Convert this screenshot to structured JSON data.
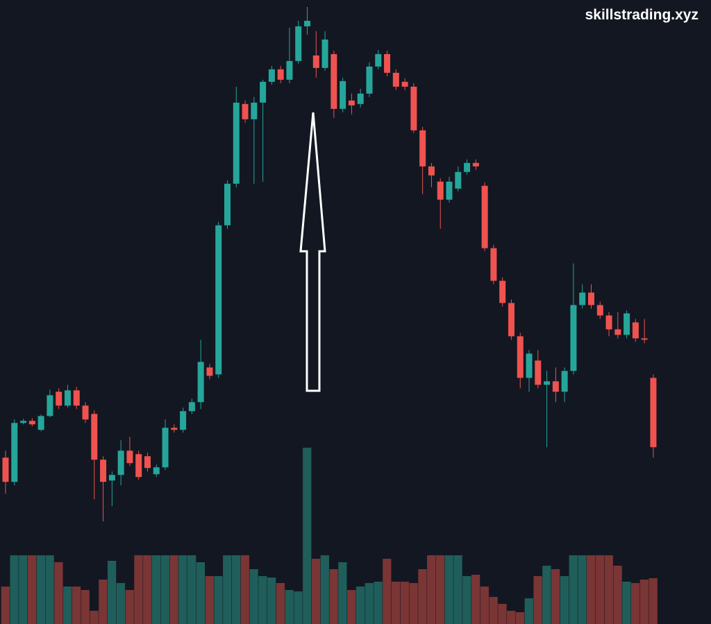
{
  "chart_data": {
    "type": "candlestick",
    "watermark": "skillstrading.xyz",
    "open": [
      240,
      205,
      290,
      293,
      280,
      300,
      335,
      315,
      337,
      315,
      303,
      237,
      207,
      215,
      250,
      245,
      242,
      216,
      226,
      283,
      280,
      307,
      320,
      370,
      360,
      575,
      635,
      750,
      728,
      752,
      782,
      800,
      785,
      812,
      862,
      820,
      802,
      822,
      743,
      755,
      750,
      765,
      804,
      822,
      795,
      782,
      775,
      712,
      660,
      638,
      612,
      628,
      652,
      665,
      632,
      542,
      495,
      463,
      415,
      355,
      380,
      345,
      350,
      335,
      365,
      460,
      478,
      460,
      445,
      425,
      417,
      435,
      412,
      355
    ],
    "high": [
      250,
      295,
      296,
      297,
      302,
      338,
      340,
      345,
      342,
      320,
      308,
      242,
      220,
      265,
      270,
      250,
      247,
      230,
      295,
      288,
      312,
      325,
      410,
      375,
      580,
      640,
      775,
      755,
      760,
      785,
      805,
      805,
      860,
      870,
      890,
      855,
      855,
      827,
      788,
      765,
      772,
      810,
      828,
      827,
      800,
      787,
      780,
      717,
      665,
      643,
      645,
      660,
      670,
      670,
      637,
      547,
      500,
      468,
      420,
      395,
      395,
      365,
      370,
      370,
      520,
      490,
      490,
      465,
      450,
      450,
      452,
      440,
      440,
      360
    ],
    "low": [
      188,
      200,
      288,
      285,
      278,
      298,
      310,
      312,
      310,
      290,
      180,
      148,
      170,
      200,
      228,
      208,
      220,
      212,
      222,
      276,
      276,
      303,
      310,
      353,
      355,
      570,
      630,
      723,
      635,
      638,
      778,
      780,
      780,
      808,
      850,
      788,
      798,
      730,
      738,
      735,
      745,
      760,
      800,
      790,
      770,
      770,
      708,
      620,
      630,
      570,
      608,
      624,
      648,
      655,
      538,
      490,
      458,
      410,
      340,
      335,
      340,
      255,
      320,
      320,
      360,
      455,
      455,
      440,
      415,
      412,
      412,
      407,
      405,
      240
    ],
    "close": [
      205,
      290,
      293,
      288,
      300,
      330,
      315,
      337,
      315,
      295,
      237,
      205,
      215,
      250,
      232,
      212,
      225,
      226,
      283,
      280,
      307,
      320,
      378,
      358,
      575,
      635,
      752,
      728,
      752,
      782,
      800,
      785,
      812,
      862,
      870,
      802,
      843,
      743,
      783,
      748,
      765,
      804,
      822,
      795,
      775,
      775,
      712,
      660,
      647,
      612,
      638,
      652,
      665,
      660,
      542,
      495,
      463,
      415,
      355,
      390,
      345,
      350,
      335,
      365,
      460,
      478,
      460,
      445,
      425,
      417,
      448,
      412,
      410,
      255
    ],
    "volume": [
      54,
      99,
      99,
      99,
      99,
      99,
      89,
      54,
      54,
      49,
      19,
      64,
      91,
      59,
      49,
      99,
      99,
      99,
      99,
      99,
      99,
      99,
      89,
      69,
      69,
      99,
      99,
      99,
      79,
      69,
      67,
      59,
      49,
      47,
      254,
      94,
      99,
      79,
      89,
      49,
      54,
      59,
      61,
      94,
      61,
      61,
      59,
      79,
      99,
      99,
      99,
      99,
      69,
      71,
      54,
      39,
      29,
      19,
      17,
      37,
      69,
      84,
      79,
      69,
      99,
      99,
      99,
      99,
      99,
      84,
      61,
      59,
      64,
      66
    ],
    "up_color": "#26a69a",
    "down_color": "#ef5350",
    "volume_up_color": "#1f5e5a",
    "volume_down_color": "#7a3535",
    "ylim": [
      0,
      900
    ],
    "volume_ylim": [
      0,
      260
    ]
  }
}
